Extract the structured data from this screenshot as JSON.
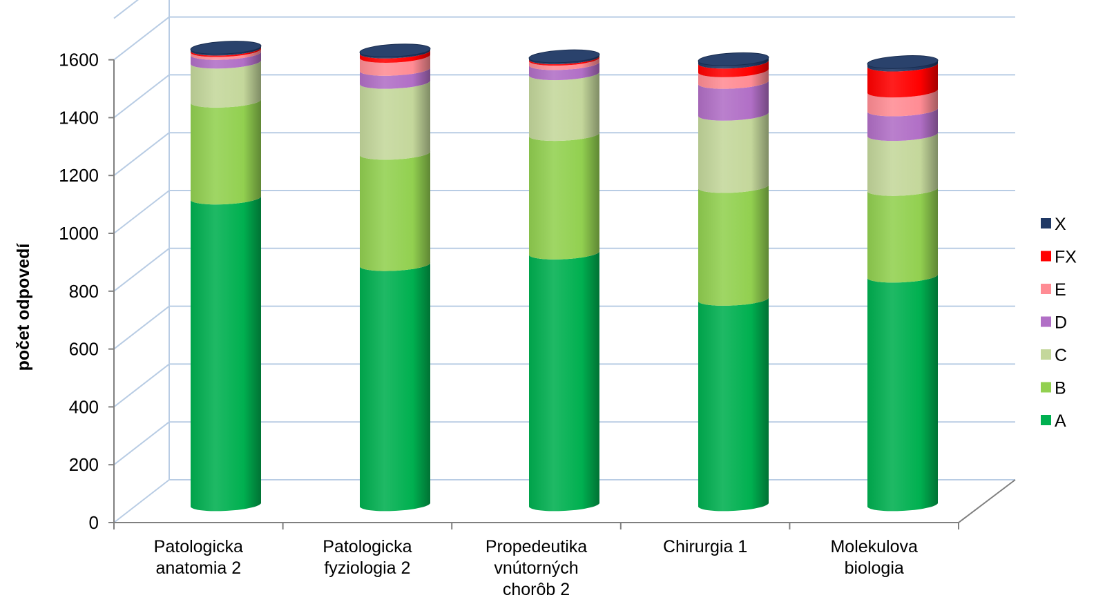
{
  "chart_data": {
    "type": "bar",
    "style": "3d-stacked-cylinder",
    "title": "",
    "ylabel": "počet odpovedí",
    "xlabel": "",
    "ylim": [
      0,
      1600
    ],
    "yticks": [
      "0",
      "200",
      "400",
      "600",
      "800",
      "1000",
      "1200",
      "1400",
      "1600"
    ],
    "grid": true,
    "legend_position": "right",
    "categories": [
      [
        "Patologicka",
        "anatomia 2"
      ],
      [
        "Patologicka",
        "fyziologia 2"
      ],
      [
        "Propedeutika",
        "vnútorných",
        "chorôb 2"
      ],
      [
        "Chirurgia 1"
      ],
      [
        "Molekulova",
        "biologia"
      ]
    ],
    "series": [
      {
        "name": "A",
        "color": "#00b050",
        "values": [
          1060,
          830,
          870,
          710,
          790
        ]
      },
      {
        "name": "B",
        "color": "#92d050",
        "values": [
          335,
          385,
          410,
          390,
          300
        ]
      },
      {
        "name": "C",
        "color": "#c4d79b",
        "values": [
          135,
          245,
          210,
          250,
          190
        ]
      },
      {
        "name": "D",
        "color": "#b16fc6",
        "values": [
          30,
          45,
          35,
          110,
          85
        ]
      },
      {
        "name": "E",
        "color": "#ff8c94",
        "values": [
          10,
          45,
          15,
          40,
          65
        ]
      },
      {
        "name": "FX",
        "color": "#ff0000",
        "values": [
          5,
          15,
          5,
          30,
          90
        ]
      },
      {
        "name": "X",
        "color": "#1f3864",
        "values": [
          5,
          5,
          5,
          10,
          10
        ]
      }
    ]
  }
}
